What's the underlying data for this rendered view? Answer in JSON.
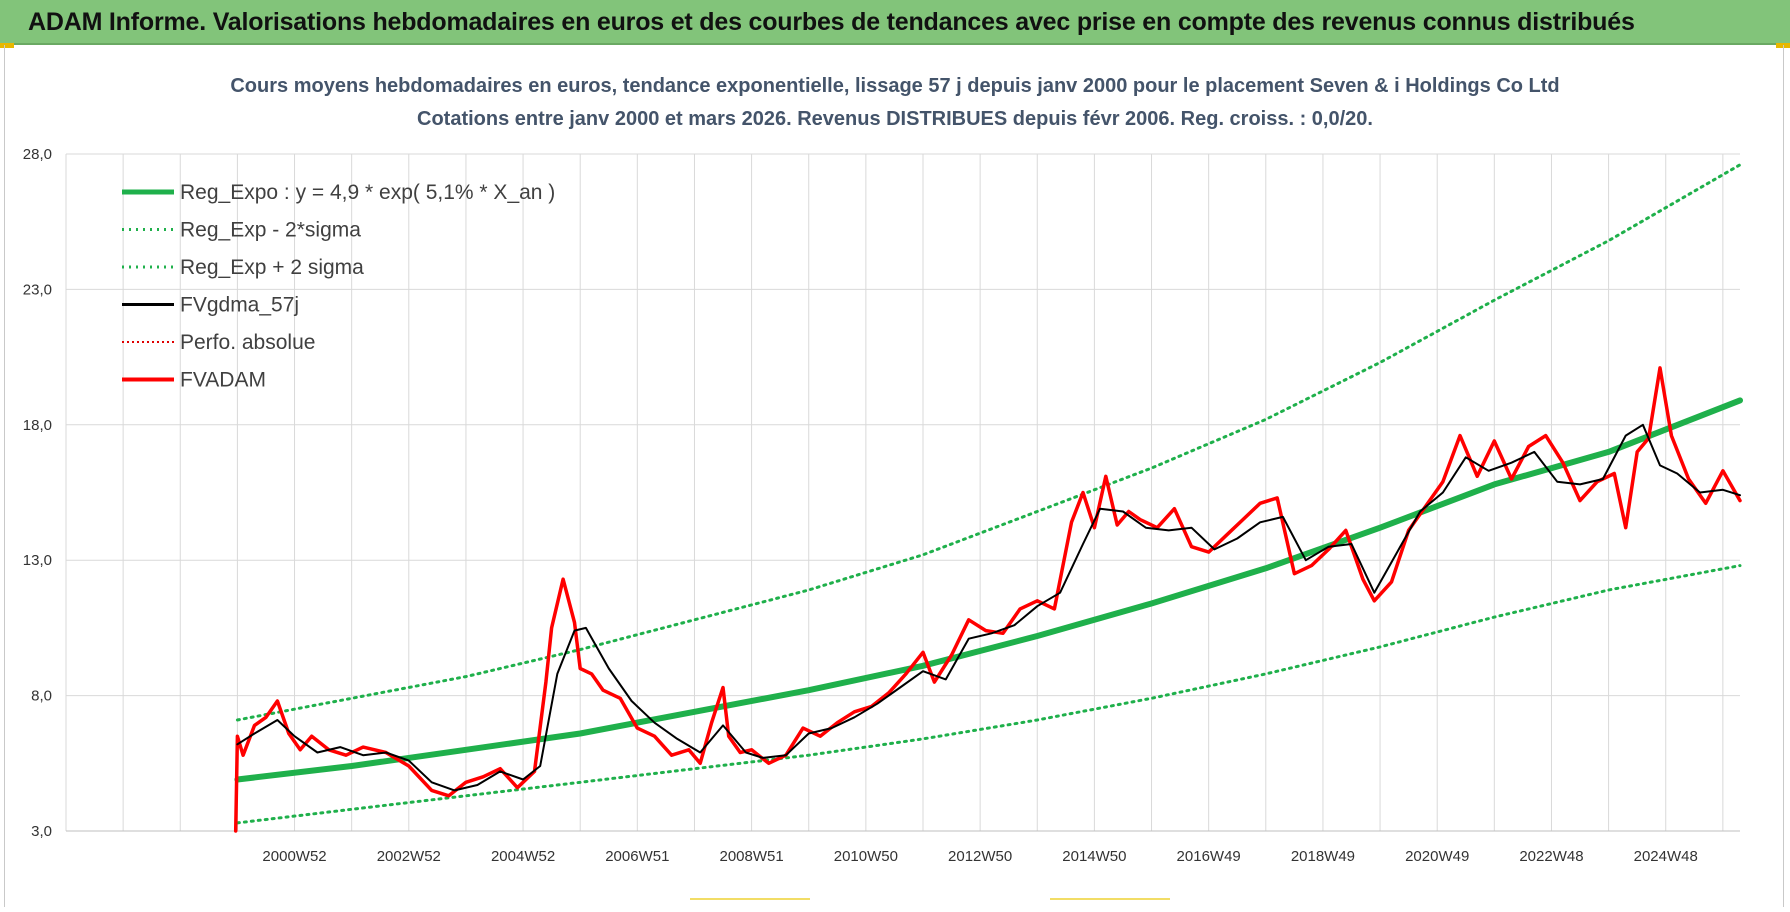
{
  "banner": {
    "title": "ADAM Informe. Valorisations hebdomadaires en euros et des courbes de tendances avec prise en compte des revenus connus distribués"
  },
  "colors": {
    "banner_bg": "#82c47a",
    "reg_expo": "#1fb04b",
    "sigma_bands": "#1fb04b",
    "fvgdma": "#000000",
    "perfo": "#e00000",
    "fvadam": "#ff0000",
    "grid": "#d9d9d9"
  },
  "chart_data": {
    "type": "line",
    "title_line1": "Cours moyens hebdomadaires en euros, tendance exponentielle, lissage 57 j depuis janv 2000 pour le placement Seven & i Holdings Co Ltd",
    "title_line2": "Cotations entre janv 2000 et mars 2026. Revenus DISTRIBUES depuis févr 2006. Reg. croiss. : 0,0/20.",
    "ylim": [
      3.0,
      28.0
    ],
    "y_ticks": [
      "28,0",
      "23,0",
      "18,0",
      "13,0",
      "8,0",
      "3,0"
    ],
    "y_tick_values": [
      28.0,
      23.0,
      18.0,
      13.0,
      8.0,
      3.0
    ],
    "x_range_years": [
      1997.0,
      2026.3
    ],
    "x_tick_labels": [
      "2000W52",
      "2002W52",
      "2004W52",
      "2006W51",
      "2008W51",
      "2010W50",
      "2012W50",
      "2014W50",
      "2016W49",
      "2018W49",
      "2020W49",
      "2022W48",
      "2024W48"
    ],
    "x_tick_years": [
      2001.0,
      2003.0,
      2005.0,
      2007.0,
      2009.0,
      2011.0,
      2013.0,
      2015.0,
      2017.0,
      2019.0,
      2021.0,
      2023.0,
      2025.0
    ],
    "legend": [
      {
        "label": "Reg_Expo : y = 4,9 * exp( 5,1% *  X_an )",
        "style": "thick-solid",
        "color": "#1fb04b"
      },
      {
        "label": "Reg_Exp - 2*sigma",
        "style": "dotted",
        "color": "#1fb04b"
      },
      {
        "label": "Reg_Exp + 2 sigma",
        "style": "dotted",
        "color": "#1fb04b"
      },
      {
        "label": "FVgdma_57j",
        "style": "solid",
        "color": "#000000"
      },
      {
        "label": "Perfo. absolue",
        "style": "dotted",
        "color": "#e00000"
      },
      {
        "label": "FVADAM",
        "style": "thick-solid",
        "color": "#ff0000"
      }
    ],
    "series": [
      {
        "name": "Reg_Expo : y = 4,9 * exp( 5,1% *  X_an )",
        "x": [
          2000.0,
          2002.0,
          2004.0,
          2006.0,
          2008.0,
          2010.0,
          2012.0,
          2014.0,
          2016.0,
          2018.0,
          2020.0,
          2022.0,
          2024.0,
          2026.3
        ],
        "values": [
          4.9,
          5.4,
          6.0,
          6.6,
          7.4,
          8.2,
          9.1,
          10.2,
          11.4,
          12.7,
          14.2,
          15.8,
          17.0,
          18.9
        ]
      },
      {
        "name": "Reg_Exp - 2*sigma",
        "x": [
          2000.0,
          2002.0,
          2004.0,
          2006.0,
          2008.0,
          2010.0,
          2012.0,
          2014.0,
          2016.0,
          2018.0,
          2020.0,
          2022.0,
          2024.0,
          2026.3
        ],
        "values": [
          3.3,
          3.8,
          4.3,
          4.8,
          5.3,
          5.8,
          6.4,
          7.1,
          7.9,
          8.8,
          9.8,
          10.9,
          11.9,
          12.8
        ]
      },
      {
        "name": "Reg_Exp + 2 sigma",
        "x": [
          2000.0,
          2002.0,
          2004.0,
          2006.0,
          2008.0,
          2010.0,
          2012.0,
          2014.0,
          2016.0,
          2018.0,
          2020.0,
          2022.0,
          2024.0,
          2026.3
        ],
        "values": [
          7.1,
          7.9,
          8.7,
          9.7,
          10.8,
          11.9,
          13.2,
          14.8,
          16.4,
          18.2,
          20.3,
          22.6,
          24.8,
          27.6
        ]
      },
      {
        "name": "FVgdma_57j",
        "x": [
          2000.0,
          2000.3,
          2000.7,
          2001.0,
          2001.4,
          2001.8,
          2002.2,
          2002.6,
          2003.0,
          2003.4,
          2003.8,
          2004.2,
          2004.6,
          2005.0,
          2005.3,
          2005.6,
          2005.9,
          2006.1,
          2006.5,
          2006.9,
          2007.3,
          2007.7,
          2008.1,
          2008.5,
          2008.9,
          2009.2,
          2009.6,
          2010.0,
          2010.4,
          2010.8,
          2011.2,
          2011.6,
          2012.0,
          2012.4,
          2012.8,
          2013.2,
          2013.6,
          2014.0,
          2014.4,
          2014.8,
          2015.1,
          2015.5,
          2015.9,
          2016.3,
          2016.7,
          2017.1,
          2017.5,
          2017.9,
          2018.3,
          2018.7,
          2019.1,
          2019.5,
          2019.9,
          2020.3,
          2020.7,
          2021.1,
          2021.5,
          2021.9,
          2022.3,
          2022.7,
          2023.1,
          2023.5,
          2023.9,
          2024.3,
          2024.6,
          2024.9,
          2025.2,
          2025.6,
          2026.0,
          2026.3
        ],
        "values": [
          6.2,
          6.6,
          7.1,
          6.5,
          5.9,
          6.1,
          5.8,
          5.9,
          5.6,
          4.8,
          4.5,
          4.7,
          5.2,
          4.9,
          5.4,
          8.8,
          10.4,
          10.5,
          9.0,
          7.8,
          7.0,
          6.4,
          5.9,
          6.9,
          5.9,
          5.7,
          5.8,
          6.6,
          6.8,
          7.2,
          7.7,
          8.3,
          8.9,
          8.6,
          10.1,
          10.3,
          10.6,
          11.3,
          11.8,
          13.6,
          14.9,
          14.8,
          14.2,
          14.1,
          14.2,
          13.4,
          13.8,
          14.4,
          14.6,
          13.0,
          13.5,
          13.6,
          11.8,
          13.3,
          14.8,
          15.5,
          16.8,
          16.3,
          16.6,
          17.0,
          15.9,
          15.8,
          16.0,
          17.6,
          18.0,
          16.5,
          16.2,
          15.5,
          15.6,
          15.4
        ]
      },
      {
        "name": "FVADAM",
        "x": [
          1999.97,
          2000.0,
          2000.1,
          2000.3,
          2000.5,
          2000.7,
          2000.9,
          2001.1,
          2001.3,
          2001.6,
          2001.9,
          2002.2,
          2002.6,
          2003.0,
          2003.4,
          2003.7,
          2004.0,
          2004.3,
          2004.6,
          2004.9,
          2005.2,
          2005.4,
          2005.5,
          2005.7,
          2005.9,
          2006.0,
          2006.2,
          2006.4,
          2006.7,
          2007.0,
          2007.3,
          2007.6,
          2007.9,
          2008.1,
          2008.3,
          2008.5,
          2008.6,
          2008.8,
          2009.0,
          2009.3,
          2009.6,
          2009.9,
          2010.2,
          2010.5,
          2010.8,
          2011.1,
          2011.4,
          2011.7,
          2012.0,
          2012.2,
          2012.5,
          2012.8,
          2013.1,
          2013.4,
          2013.7,
          2014.0,
          2014.3,
          2014.6,
          2014.8,
          2015.0,
          2015.2,
          2015.4,
          2015.6,
          2015.8,
          2016.1,
          2016.4,
          2016.7,
          2017.0,
          2017.3,
          2017.6,
          2017.9,
          2018.2,
          2018.5,
          2018.8,
          2019.1,
          2019.4,
          2019.7,
          2019.9,
          2020.2,
          2020.5,
          2020.8,
          2021.1,
          2021.4,
          2021.7,
          2022.0,
          2022.3,
          2022.6,
          2022.9,
          2023.2,
          2023.5,
          2023.8,
          2024.1,
          2024.3,
          2024.5,
          2024.7,
          2024.9,
          2025.1,
          2025.4,
          2025.7,
          2026.0,
          2026.3
        ],
        "values": [
          3.0,
          6.5,
          5.8,
          6.9,
          7.2,
          7.8,
          6.6,
          6.0,
          6.5,
          6.0,
          5.8,
          6.1,
          5.9,
          5.4,
          4.5,
          4.3,
          4.8,
          5.0,
          5.3,
          4.6,
          5.2,
          8.5,
          10.5,
          12.3,
          10.7,
          9.0,
          8.8,
          8.2,
          7.9,
          6.8,
          6.5,
          5.8,
          6.0,
          5.5,
          7.0,
          8.3,
          6.5,
          5.9,
          6.0,
          5.5,
          5.8,
          6.8,
          6.5,
          7.0,
          7.4,
          7.6,
          8.1,
          8.8,
          9.6,
          8.5,
          9.5,
          10.8,
          10.4,
          10.3,
          11.2,
          11.5,
          11.2,
          14.4,
          15.5,
          14.2,
          16.1,
          14.3,
          14.8,
          14.5,
          14.2,
          14.9,
          13.5,
          13.3,
          13.9,
          14.5,
          15.1,
          15.3,
          12.5,
          12.8,
          13.4,
          14.1,
          12.3,
          11.5,
          12.2,
          14.1,
          15.0,
          15.9,
          17.6,
          16.1,
          17.4,
          16.0,
          17.2,
          17.6,
          16.6,
          15.2,
          15.9,
          16.2,
          14.2,
          17.0,
          17.5,
          20.1,
          17.6,
          16.0,
          15.1,
          16.3,
          15.2
        ]
      }
    ]
  }
}
